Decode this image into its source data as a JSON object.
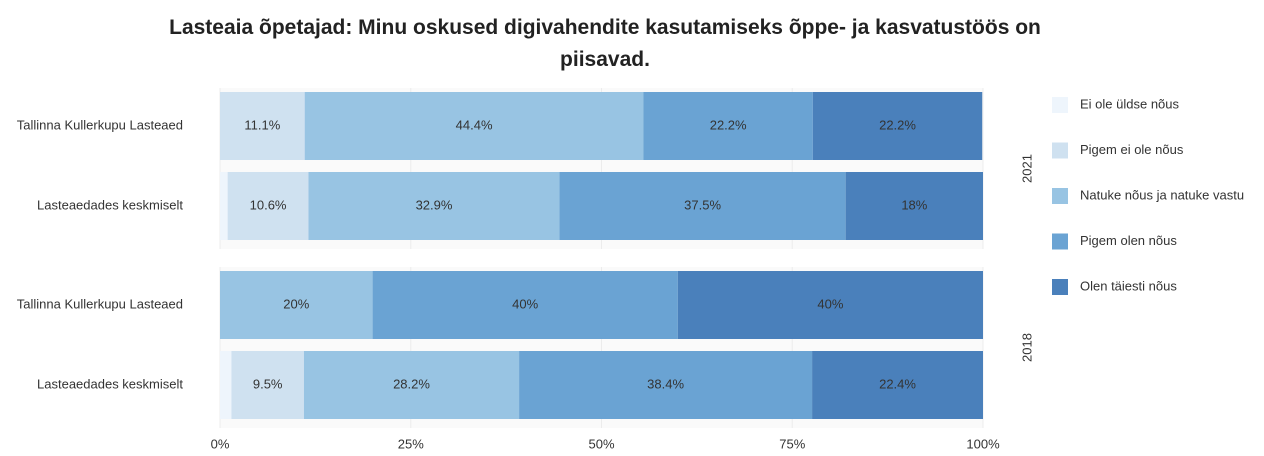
{
  "chart_data": {
    "type": "bar",
    "orientation": "horizontal",
    "stacked": true,
    "title": "Lasteaia õpetajad: Minu oskused digivahendite kasutamiseks õppe- ja kasvatustöös on piisavad.",
    "xlim": [
      0,
      100
    ],
    "xticks": [
      {
        "value": 0,
        "label": "0%"
      },
      {
        "value": 25,
        "label": "25%"
      },
      {
        "value": 50,
        "label": "50%"
      },
      {
        "value": 75,
        "label": "75%"
      },
      {
        "value": 100,
        "label": "100%"
      }
    ],
    "grid": true,
    "legend": "right",
    "series": [
      {
        "name": "Ei ole üldse nõus",
        "color": "#eef5fc"
      },
      {
        "name": "Pigem ei ole nõus",
        "color": "#cfe1f0"
      },
      {
        "name": "Natuke nõus ja natuke vastu",
        "color": "#98c4e3"
      },
      {
        "name": "Pigem olen nõus",
        "color": "#6aa3d3"
      },
      {
        "name": "Olen täiesti nõus",
        "color": "#4a80bb"
      }
    ],
    "panels": [
      {
        "label": "2021",
        "categories": [
          "Tallinna Kullerkupu Lasteaed",
          "Lasteaedades keskmiselt"
        ],
        "series": [
          {
            "values": [
              0,
              1.0
            ],
            "value_labels": [
              null,
              null
            ]
          },
          {
            "values": [
              11.1,
              10.6
            ],
            "value_labels": [
              "11.1%",
              "10.6%"
            ]
          },
          {
            "values": [
              44.4,
              32.9
            ],
            "value_labels": [
              "44.4%",
              "32.9%"
            ]
          },
          {
            "values": [
              22.2,
              37.5
            ],
            "value_labels": [
              "22.2%",
              "37.5%"
            ]
          },
          {
            "values": [
              22.2,
              18
            ],
            "value_labels": [
              "22.2%",
              "18%"
            ]
          }
        ]
      },
      {
        "label": "2018",
        "categories": [
          "Tallinna Kullerkupu Lasteaed",
          "Lasteaedades keskmiselt"
        ],
        "series": [
          {
            "values": [
              0,
              1.5
            ],
            "value_labels": [
              null,
              null
            ]
          },
          {
            "values": [
              0,
              9.5
            ],
            "value_labels": [
              null,
              "9.5%"
            ]
          },
          {
            "values": [
              20,
              28.2
            ],
            "value_labels": [
              "20%",
              "28.2%"
            ]
          },
          {
            "values": [
              40,
              38.4
            ],
            "value_labels": [
              "40%",
              "38.4%"
            ]
          },
          {
            "values": [
              40,
              22.4
            ],
            "value_labels": [
              "40%",
              "22.4%"
            ]
          }
        ]
      }
    ]
  }
}
